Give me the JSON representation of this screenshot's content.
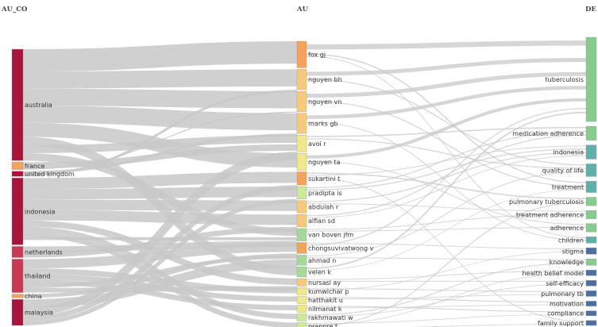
{
  "columns": [
    {
      "id": "AU_CO",
      "title": "AU_CO"
    },
    {
      "id": "AU",
      "title": "AU"
    },
    {
      "id": "DE",
      "title": "DE"
    }
  ],
  "colors": {
    "link": "#c8c8c8",
    "country_dark": "#a8143c",
    "country_mid": "#c93a52",
    "orange": "#f5a35a",
    "light_orange": "#f9c97a",
    "yellow": "#f1e88a",
    "light_green": "#cfe89a",
    "mid_green": "#a6d89a",
    "teal": "#5fb0a8",
    "green": "#86cc8e",
    "blue": "#4a6fa5"
  },
  "chart_data": {
    "type": "sankey",
    "title": "",
    "nodes": {
      "AU_CO": [
        {
          "name": "australia",
          "value": 30,
          "color": "country_dark"
        },
        {
          "name": "france",
          "value": 2,
          "color": "orange"
        },
        {
          "name": "united kingdom",
          "value": 1.4,
          "color": "country_dark"
        },
        {
          "name": "indonesia",
          "value": 18,
          "color": "country_dark"
        },
        {
          "name": "netherlands",
          "value": 3,
          "color": "country_mid"
        },
        {
          "name": "thailand",
          "value": 9,
          "color": "country_mid"
        },
        {
          "name": "china",
          "value": 1,
          "color": "orange"
        },
        {
          "name": "malaysia",
          "value": 7,
          "color": "country_dark"
        }
      ],
      "AU": [
        {
          "name": "fox gj",
          "value": 6,
          "color": "orange"
        },
        {
          "name": "nguyen bh",
          "value": 4.6,
          "color": "light_orange"
        },
        {
          "name": "nguyen vn",
          "value": 4.6,
          "color": "light_orange"
        },
        {
          "name": "marks gb",
          "value": 4.6,
          "color": "light_orange"
        },
        {
          "name": "avoi r",
          "value": 3.8,
          "color": "yellow"
        },
        {
          "name": "nguyen ta",
          "value": 3.8,
          "color": "yellow"
        },
        {
          "name": "sukartini t",
          "value": 3,
          "color": "orange"
        },
        {
          "name": "pradipta is",
          "value": 2.8,
          "color": "light_green"
        },
        {
          "name": "abdulah r",
          "value": 2.8,
          "color": "light_orange"
        },
        {
          "name": "alfian sd",
          "value": 2.8,
          "color": "light_orange"
        },
        {
          "name": "van boven jfm",
          "value": 2.8,
          "color": "mid_green"
        },
        {
          "name": "chongsuvivatwong v",
          "value": 2.5,
          "color": "orange"
        },
        {
          "name": "ahmad n",
          "value": 2.3,
          "color": "mid_green"
        },
        {
          "name": "velen k",
          "value": 2.3,
          "color": "mid_green"
        },
        {
          "name": "nursasi ay",
          "value": 1.7,
          "color": "light_orange"
        },
        {
          "name": "kumwichar p",
          "value": 1.5,
          "color": "yellow"
        },
        {
          "name": "hatthakit u",
          "value": 1.4,
          "color": "yellow"
        },
        {
          "name": "nilmanat k",
          "value": 1.4,
          "color": "yellow"
        },
        {
          "name": "rakhmawati w",
          "value": 1.4,
          "color": "light_green"
        },
        {
          "name": "prappre t",
          "value": 1.4,
          "color": "light_green"
        }
      ],
      "DE": [
        {
          "name": "tuberculosis",
          "value": 12,
          "color": "green"
        },
        {
          "name": "medication adherence",
          "value": 2,
          "color": "green"
        },
        {
          "name": "indonesia",
          "value": 2,
          "color": "teal"
        },
        {
          "name": "quality of life",
          "value": 1.8,
          "color": "teal"
        },
        {
          "name": "treatment",
          "value": 1.6,
          "color": "teal"
        },
        {
          "name": "pulmonary tuberculosis",
          "value": 1.2,
          "color": "green"
        },
        {
          "name": "treatment adherence",
          "value": 1.2,
          "color": "green"
        },
        {
          "name": "adherence",
          "value": 1.2,
          "color": "green"
        },
        {
          "name": "children",
          "value": 0.9,
          "color": "teal"
        },
        {
          "name": "stigma",
          "value": 0.9,
          "color": "blue"
        },
        {
          "name": "knowledge",
          "value": 0.9,
          "color": "green"
        },
        {
          "name": "health belief model",
          "value": 0.8,
          "color": "blue"
        },
        {
          "name": "self-efficacy",
          "value": 0.8,
          "color": "blue"
        },
        {
          "name": "pulmonary tb",
          "value": 0.8,
          "color": "blue"
        },
        {
          "name": "motivation",
          "value": 0.7,
          "color": "blue"
        },
        {
          "name": "compliance",
          "value": 0.7,
          "color": "blue"
        },
        {
          "name": "family support",
          "value": 0.7,
          "color": "blue"
        }
      ]
    },
    "links": [
      {
        "source": "australia",
        "target": "fox gj",
        "value": 6
      },
      {
        "source": "australia",
        "target": "nguyen bh",
        "value": 4.6
      },
      {
        "source": "australia",
        "target": "nguyen vn",
        "value": 4.6
      },
      {
        "source": "australia",
        "target": "marks gb",
        "value": 4.6
      },
      {
        "source": "australia",
        "target": "nguyen ta",
        "value": 3.8
      },
      {
        "source": "australia",
        "target": "velen k",
        "value": 2.3
      },
      {
        "source": "australia",
        "target": "avoi r",
        "value": 2.1
      },
      {
        "source": "australia",
        "target": "van boven jfm",
        "value": 2
      },
      {
        "source": "france",
        "target": "avoi r",
        "value": 1.7
      },
      {
        "source": "france",
        "target": "nguyen vn",
        "value": 0.3
      },
      {
        "source": "united kingdom",
        "target": "marks gb",
        "value": 0.7
      },
      {
        "source": "united kingdom",
        "target": "nguyen bh",
        "value": 0.7
      },
      {
        "source": "indonesia",
        "target": "sukartini t",
        "value": 3
      },
      {
        "source": "indonesia",
        "target": "pradipta is",
        "value": 2.8
      },
      {
        "source": "indonesia",
        "target": "abdulah r",
        "value": 2.8
      },
      {
        "source": "indonesia",
        "target": "alfian sd",
        "value": 2.8
      },
      {
        "source": "indonesia",
        "target": "nursasi ay",
        "value": 1.7
      },
      {
        "source": "indonesia",
        "target": "rakhmawati w",
        "value": 1.4
      },
      {
        "source": "indonesia",
        "target": "prappre t",
        "value": 1.4
      },
      {
        "source": "indonesia",
        "target": "van boven jfm",
        "value": 0.8
      },
      {
        "source": "netherlands",
        "target": "van boven jfm",
        "value": 1.6
      },
      {
        "source": "netherlands",
        "target": "alfian sd",
        "value": 1.4
      },
      {
        "source": "thailand",
        "target": "chongsuvivatwong v",
        "value": 2.5
      },
      {
        "source": "thailand",
        "target": "kumwichar p",
        "value": 1.5
      },
      {
        "source": "thailand",
        "target": "hatthakit u",
        "value": 1.4
      },
      {
        "source": "thailand",
        "target": "nilmanat k",
        "value": 1.4
      },
      {
        "source": "thailand",
        "target": "ahmad n",
        "value": 1
      },
      {
        "source": "thailand",
        "target": "nursasi ay",
        "value": 1.2
      },
      {
        "source": "china",
        "target": "chongsuvivatwong v",
        "value": 1
      },
      {
        "source": "malaysia",
        "target": "ahmad n",
        "value": 2.3
      },
      {
        "source": "malaysia",
        "target": "avoi r",
        "value": 2.2
      },
      {
        "source": "malaysia",
        "target": "sukartini t",
        "value": 1.4
      },
      {
        "source": "malaysia",
        "target": "pradipta is",
        "value": 1.1
      },
      {
        "source": "fox gj",
        "target": "tuberculosis",
        "value": 2.6
      },
      {
        "source": "fox gj",
        "target": "treatment",
        "value": 0.6
      },
      {
        "source": "fox gj",
        "target": "children",
        "value": 0.4
      },
      {
        "source": "nguyen bh",
        "target": "tuberculosis",
        "value": 2
      },
      {
        "source": "nguyen bh",
        "target": "quality of life",
        "value": 0.5
      },
      {
        "source": "nguyen vn",
        "target": "tuberculosis",
        "value": 2
      },
      {
        "source": "nguyen vn",
        "target": "treatment",
        "value": 0.5
      },
      {
        "source": "marks gb",
        "target": "tuberculosis",
        "value": 1.8
      },
      {
        "source": "marks gb",
        "target": "children",
        "value": 0.4
      },
      {
        "source": "avoi r",
        "target": "medication adherence",
        "value": 0.6
      },
      {
        "source": "avoi r",
        "target": "quality of life",
        "value": 0.5
      },
      {
        "source": "nguyen ta",
        "target": "tuberculosis",
        "value": 1.6
      },
      {
        "source": "nguyen ta",
        "target": "adherence",
        "value": 0.4
      },
      {
        "source": "sukartini t",
        "target": "pulmonary tuberculosis",
        "value": 0.6
      },
      {
        "source": "sukartini t",
        "target": "indonesia",
        "value": 0.4
      },
      {
        "source": "sukartini t",
        "target": "family support",
        "value": 0.4
      },
      {
        "source": "pradipta is",
        "target": "medication adherence",
        "value": 0.5
      },
      {
        "source": "pradipta is",
        "target": "indonesia",
        "value": 0.5
      },
      {
        "source": "abdulah r",
        "target": "indonesia",
        "value": 0.5
      },
      {
        "source": "abdulah r",
        "target": "treatment adherence",
        "value": 0.4
      },
      {
        "source": "alfian sd",
        "target": "medication adherence",
        "value": 0.5
      },
      {
        "source": "alfian sd",
        "target": "indonesia",
        "value": 0.4
      },
      {
        "source": "van boven jfm",
        "target": "treatment adherence",
        "value": 0.4
      },
      {
        "source": "van boven jfm",
        "target": "adherence",
        "value": 0.4
      },
      {
        "source": "chongsuvivatwong v",
        "target": "stigma",
        "value": 0.4
      },
      {
        "source": "chongsuvivatwong v",
        "target": "tuberculosis",
        "value": 0.5
      },
      {
        "source": "ahmad n",
        "target": "quality of life",
        "value": 0.4
      },
      {
        "source": "ahmad n",
        "target": "knowledge",
        "value": 0.4
      },
      {
        "source": "velen k",
        "target": "tuberculosis",
        "value": 0.7
      },
      {
        "source": "velen k",
        "target": "treatment",
        "value": 0.3
      },
      {
        "source": "nursasi ay",
        "target": "health belief model",
        "value": 0.4
      },
      {
        "source": "nursasi ay",
        "target": "self-efficacy",
        "value": 0.4
      },
      {
        "source": "kumwichar p",
        "target": "pulmonary tb",
        "value": 0.4
      },
      {
        "source": "kumwichar p",
        "target": "stigma",
        "value": 0.3
      },
      {
        "source": "hatthakit u",
        "target": "motivation",
        "value": 0.4
      },
      {
        "source": "hatthakit u",
        "target": "pulmonary tb",
        "value": 0.3
      },
      {
        "source": "nilmanat k",
        "target": "compliance",
        "value": 0.4
      },
      {
        "source": "nilmanat k",
        "target": "motivation",
        "value": 0.3
      },
      {
        "source": "rakhmawati w",
        "target": "knowledge",
        "value": 0.4
      },
      {
        "source": "rakhmawati w",
        "target": "self-efficacy",
        "value": 0.3
      },
      {
        "source": "prappre t",
        "target": "compliance",
        "value": 0.3
      },
      {
        "source": "prappre t",
        "target": "health belief model",
        "value": 0.3
      },
      {
        "source": "prappre t",
        "target": "pulmonary tuberculosis",
        "value": 0.4
      },
      {
        "source": "prappre t",
        "target": "family support",
        "value": 0.3
      }
    ]
  }
}
